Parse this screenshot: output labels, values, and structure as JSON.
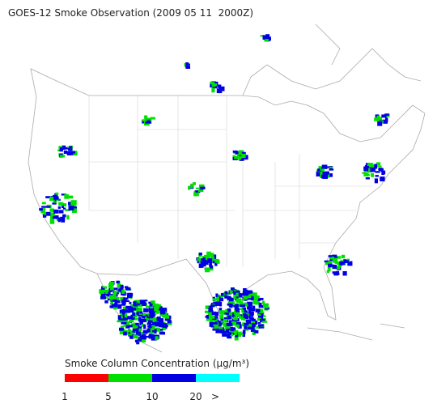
{
  "title": "GOES-12 Smoke Observation (2009 05 11  2000Z)",
  "legend": {
    "title": "Smoke Column Concentration (μg/m³)",
    "colors": [
      "#ff0000",
      "#00e000",
      "#0000e0",
      "#00ffff"
    ],
    "labels": [
      "1",
      "5",
      "10",
      "20",
      ">"
    ]
  }
}
